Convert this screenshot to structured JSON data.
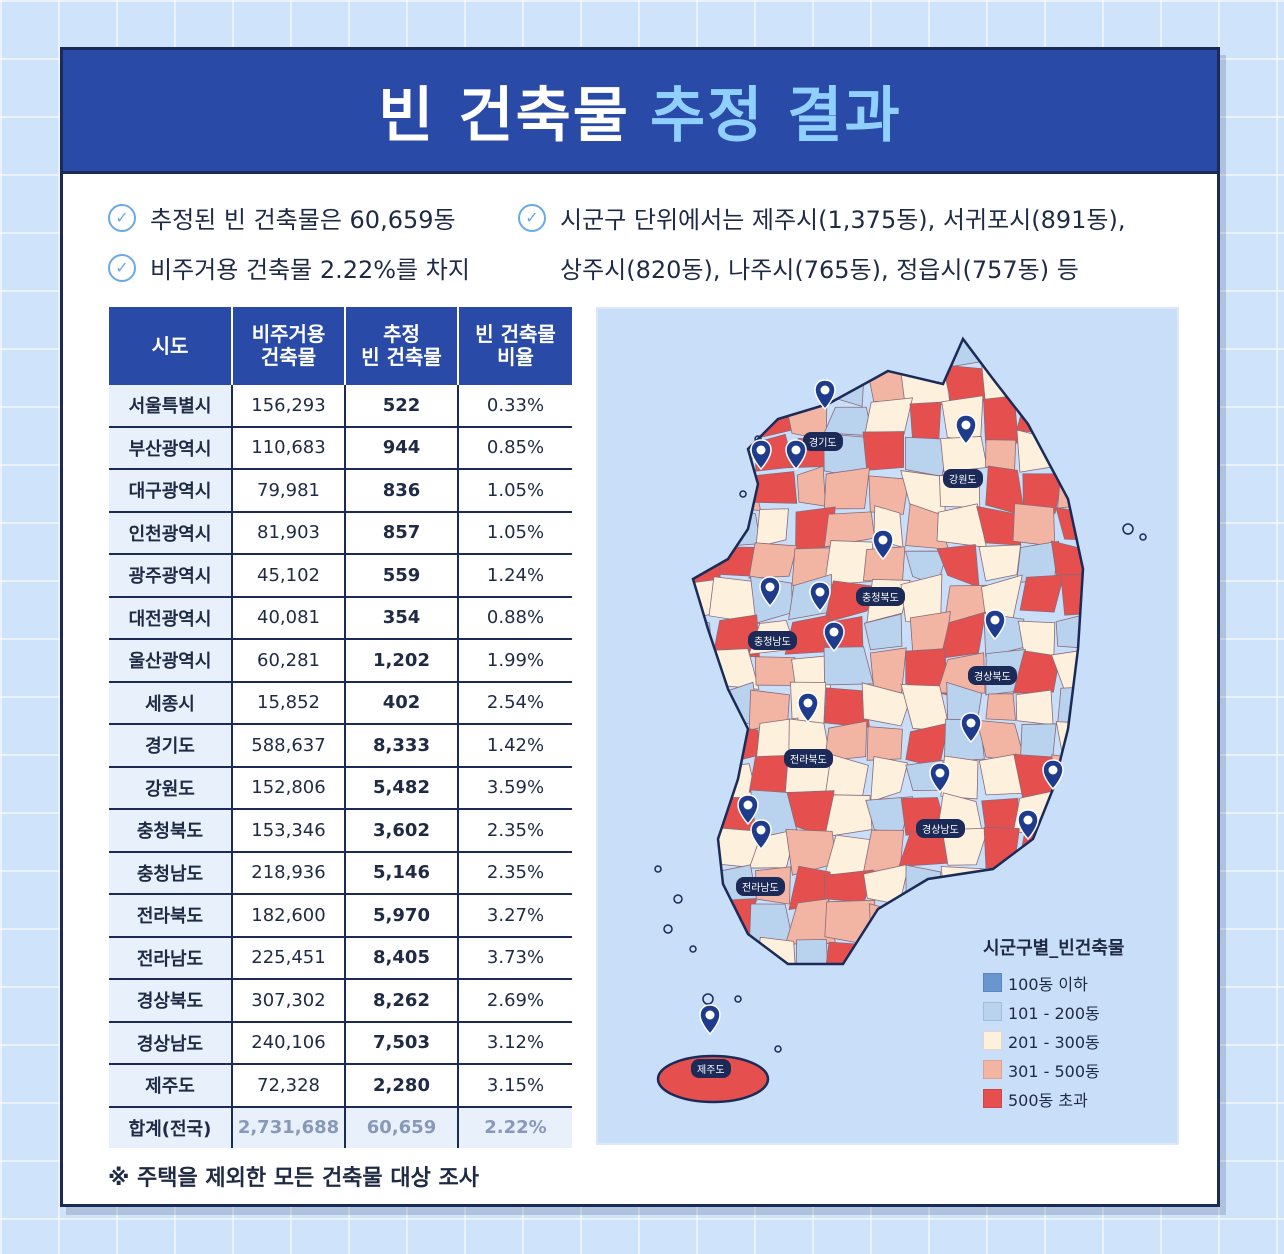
{
  "title": {
    "part1": "빈 건축물",
    "part2": "추정 결과"
  },
  "bullets": {
    "b1": "추정된 빈 건축물은 60,659동",
    "b2": "비주거용 건축물 2.22%를 차지",
    "b3": "시군구 단위에서는 제주시(1,375동), 서귀포시(891동),",
    "b4": "상주시(820동), 나주시(765동), 정읍시(757동) 등"
  },
  "table": {
    "headers": {
      "h1": "시도",
      "h2a": "비주거용",
      "h2b": "건축물",
      "h3a": "추정",
      "h3b": "빈 건축물",
      "h4a": "빈 건축물",
      "h4b": "비율"
    },
    "rows": [
      {
        "region": "서울특별시",
        "nonres": "156,293",
        "vacant": "522",
        "ratio": "0.33%"
      },
      {
        "region": "부산광역시",
        "nonres": "110,683",
        "vacant": "944",
        "ratio": "0.85%"
      },
      {
        "region": "대구광역시",
        "nonres": "79,981",
        "vacant": "836",
        "ratio": "1.05%"
      },
      {
        "region": "인천광역시",
        "nonres": "81,903",
        "vacant": "857",
        "ratio": "1.05%"
      },
      {
        "region": "광주광역시",
        "nonres": "45,102",
        "vacant": "559",
        "ratio": "1.24%"
      },
      {
        "region": "대전광역시",
        "nonres": "40,081",
        "vacant": "354",
        "ratio": "0.88%"
      },
      {
        "region": "울산광역시",
        "nonres": "60,281",
        "vacant": "1,202",
        "ratio": "1.99%"
      },
      {
        "region": "세종시",
        "nonres": "15,852",
        "vacant": "402",
        "ratio": "2.54%"
      },
      {
        "region": "경기도",
        "nonres": "588,637",
        "vacant": "8,333",
        "ratio": "1.42%"
      },
      {
        "region": "강원도",
        "nonres": "152,806",
        "vacant": "5,482",
        "ratio": "3.59%"
      },
      {
        "region": "충청북도",
        "nonres": "153,346",
        "vacant": "3,602",
        "ratio": "2.35%"
      },
      {
        "region": "충청남도",
        "nonres": "218,936",
        "vacant": "5,146",
        "ratio": "2.35%"
      },
      {
        "region": "전라북도",
        "nonres": "182,600",
        "vacant": "5,970",
        "ratio": "3.27%"
      },
      {
        "region": "전라남도",
        "nonres": "225,451",
        "vacant": "8,405",
        "ratio": "3.73%"
      },
      {
        "region": "경상북도",
        "nonres": "307,302",
        "vacant": "8,262",
        "ratio": "2.69%"
      },
      {
        "region": "경상남도",
        "nonres": "240,106",
        "vacant": "7,503",
        "ratio": "3.12%"
      },
      {
        "region": "제주도",
        "nonres": "72,328",
        "vacant": "2,280",
        "ratio": "3.15%"
      }
    ],
    "total": {
      "region": "합계(전국)",
      "nonres": "2,731,688",
      "vacant": "60,659",
      "ratio": "2.22%"
    }
  },
  "note": "※ 주택을 제외한 모든 건축물 대상 조사",
  "map": {
    "labels": {
      "gyeonggi": "경기도",
      "gangwon": "강원도",
      "chungbuk": "충청북도",
      "chungnam": "충청남도",
      "gyeongbuk": "경상북도",
      "jeonbuk": "전라북도",
      "gyeongnam": "경상남도",
      "jeonnam": "전라남도",
      "jeju": "제주도"
    },
    "legend": {
      "title": "시군구별_빈건축물",
      "items": [
        {
          "label": "100동 이하",
          "color": "#6a96cf"
        },
        {
          "label": "101 - 200동",
          "color": "#b9d2ee"
        },
        {
          "label": "201 - 300동",
          "color": "#fdf0dc"
        },
        {
          "label": "301 - 500동",
          "color": "#f3b5a3"
        },
        {
          "label": "500동 초과",
          "color": "#e5504f"
        }
      ]
    }
  },
  "colors": {
    "header": "#2a4aa8",
    "accent": "#8fd0ff",
    "border": "#1c2a57",
    "pin": "#1f3c8c"
  }
}
